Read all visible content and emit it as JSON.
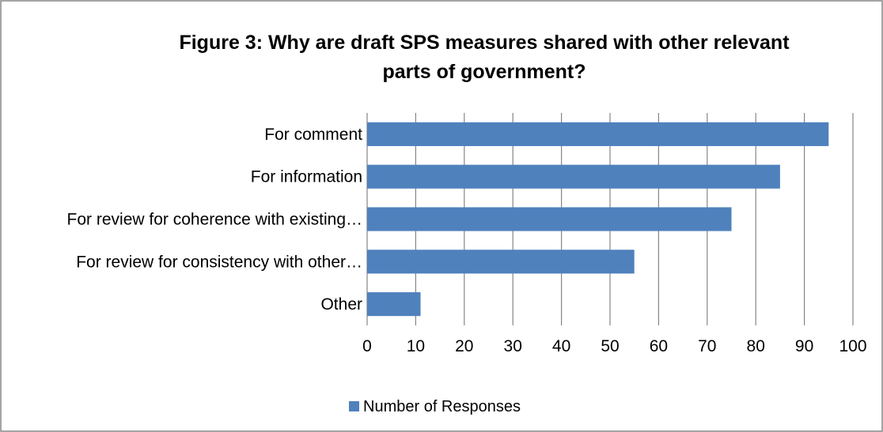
{
  "chart_data": {
    "type": "bar",
    "orientation": "horizontal",
    "title_lines": [
      "Figure 3: Why are draft SPS measures shared with other relevant",
      "parts of government?"
    ],
    "categories": [
      "For comment",
      "For information",
      "For review for coherence with existing…",
      "For review for consistency with other…",
      "Other"
    ],
    "series": [
      {
        "name": "Number of Responses",
        "values": [
          95,
          85,
          75,
          55,
          11
        ],
        "color": "#4F81BD"
      }
    ],
    "xlim": [
      0,
      100
    ],
    "xticks": [
      "0",
      "10",
      "20",
      "30",
      "40",
      "50",
      "60",
      "70",
      "80",
      "90",
      "100"
    ],
    "grid": "vertical",
    "legend_position": "bottom",
    "gridline_color": "#868686",
    "border_color": "#868686"
  }
}
